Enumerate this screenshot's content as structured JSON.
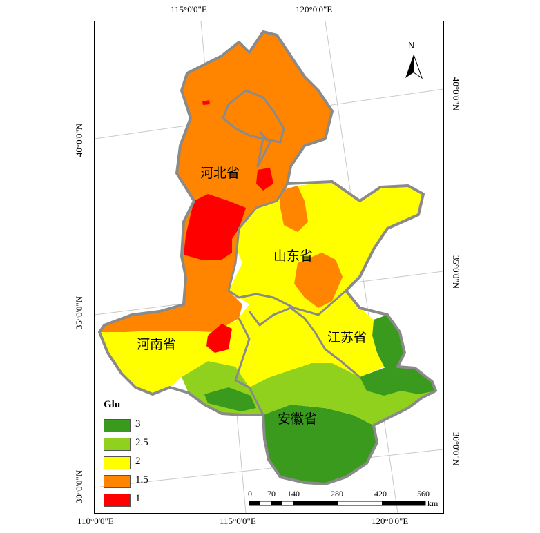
{
  "top_lon_labels": [
    "115°0'0\"E",
    "120°0'0\"E"
  ],
  "bottom_lon_labels": [
    "110°0'0\"E",
    "115°0'0\"E",
    "120°0'0\"E"
  ],
  "left_lat_labels": [
    "40°0'0\"N",
    "35°0'0\"N",
    "30°0'0\"N"
  ],
  "right_lat_labels": [
    "40°0'0\"N",
    "35°0'0\"N",
    "30°0'0\"N"
  ],
  "provinces": [
    "河北省",
    "山东省",
    "河南省",
    "江苏省",
    "安徽省"
  ],
  "legend": {
    "title": "Glu",
    "items": [
      {
        "label": "3",
        "color": "#3a9a1e"
      },
      {
        "label": "2.5",
        "color": "#8fd11c"
      },
      {
        "label": "2",
        "color": "#ffff00"
      },
      {
        "label": "1.5",
        "color": "#ff8400"
      },
      {
        "label": "1",
        "color": "#ff0000"
      }
    ]
  },
  "north_arrow": {
    "label": "N",
    "icon": "north-arrow-icon"
  },
  "scale_bar": {
    "labels": [
      "0",
      "70",
      "140",
      "280",
      "420",
      "560"
    ],
    "unit": "km"
  }
}
